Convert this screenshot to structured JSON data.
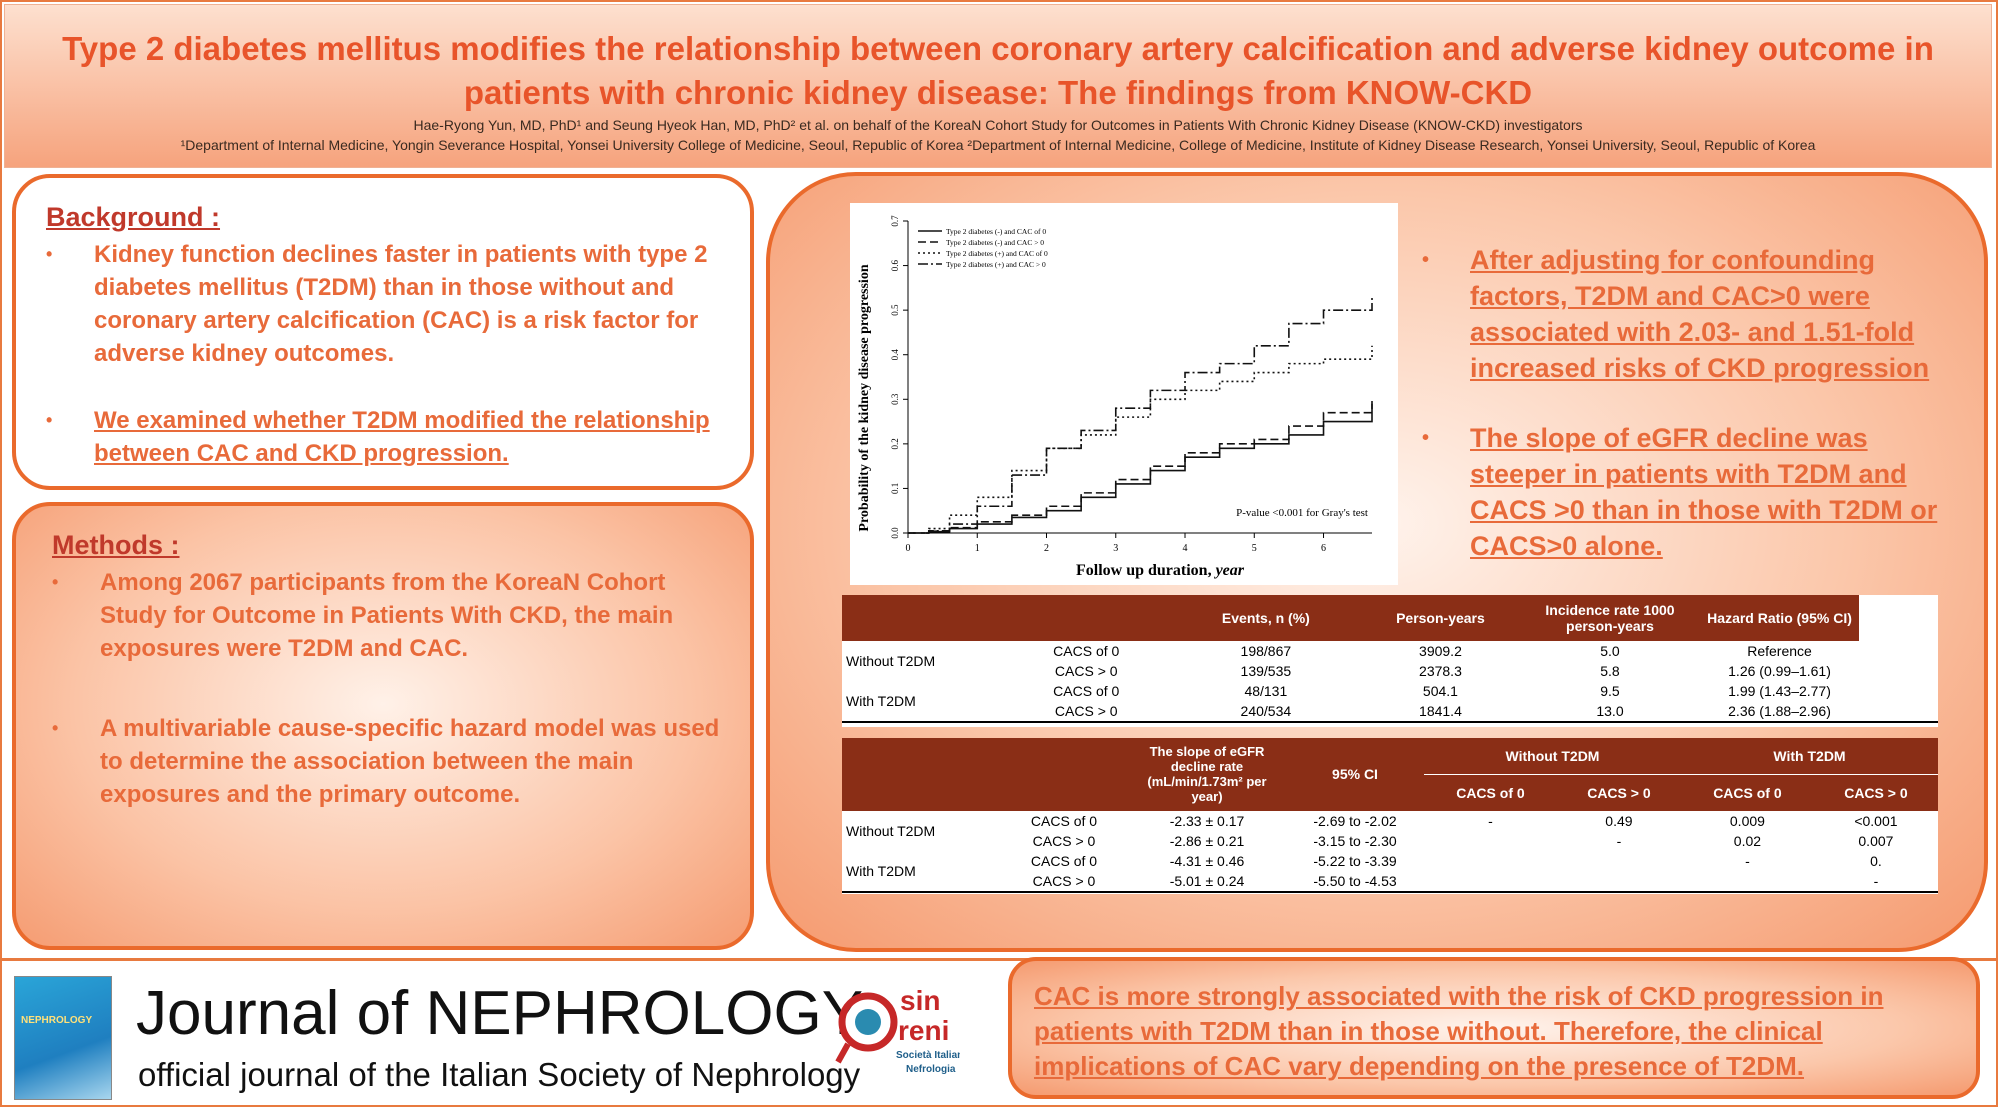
{
  "header": {
    "title": "Type 2 diabetes mellitus modifies the relationship between coronary artery calcification and adverse kidney outcome in patients with chronic kidney disease: The findings from KNOW-CKD",
    "authors": "Hae-Ryong Yun, MD, PhD¹ and Seung Hyeok Han, MD, PhD² et al. on behalf of the KoreaN Cohort Study for Outcomes in Patients With Chronic Kidney Disease (KNOW-CKD) investigators",
    "affiliations": "¹Department of Internal Medicine, Yongin Severance Hospital, Yonsei University College of Medicine, Seoul, Republic of Korea ²Department of Internal Medicine, College of Medicine, Institute of Kidney Disease Research, Yonsei University, Seoul, Republic of Korea"
  },
  "background": {
    "title": "Background :",
    "bullets": [
      "Kidney function declines faster in patients with type 2 diabetes mellitus (T2DM) than in those without and coronary artery calcification (CAC) is a risk factor for adverse kidney outcomes.",
      "We examined whether T2DM modified the relationship between CAC and CKD progression."
    ]
  },
  "methods": {
    "title": "Methods :",
    "bullets": [
      "Among 2067 participants from the KoreaN Cohort Study for Outcome in Patients With CKD, the main exposures were T2DM and CAC.",
      "A multivariable cause-specific hazard model was used to determine the association between the main exposures and the primary outcome."
    ]
  },
  "results": {
    "bullets": [
      "After adjusting for confounding factors, T2DM and CAC>0 were associated with 2.03- and 1.51-fold increased risks of CKD progression",
      "The slope of eGFR decline was steeper in patients with T2DM and CACS >0 than in those with T2DM or CACS>0 alone."
    ]
  },
  "chart_data": {
    "type": "line",
    "xlabel": "Follow up duration, year",
    "ylabel": "Probability of the kidney disease progression",
    "xlim": [
      0,
      6.7
    ],
    "ylim": [
      0,
      0.7
    ],
    "xticks": [
      "0",
      "1",
      "2",
      "3",
      "4",
      "5",
      "6"
    ],
    "yticks": [
      "0.0",
      "0.1",
      "0.2",
      "0.3",
      "0.4",
      "0.5",
      "0.6",
      "0.7"
    ],
    "annotation": "P-value <0.001 for Gray's test",
    "series": [
      {
        "name": "Type 2 diabetes (-) and CAC of 0",
        "dash": "",
        "x": [
          0,
          0.3,
          0.6,
          1,
          1.5,
          2,
          2.5,
          3,
          3.5,
          4,
          4.5,
          5,
          5.5,
          6,
          6.7
        ],
        "y": [
          0,
          0.003,
          0.01,
          0.02,
          0.035,
          0.05,
          0.08,
          0.11,
          0.14,
          0.17,
          0.19,
          0.2,
          0.22,
          0.25,
          0.29
        ]
      },
      {
        "name": "Type 2 diabetes (-) and CAC > 0",
        "dash": "8,4",
        "x": [
          0,
          0.3,
          0.6,
          1,
          1.5,
          2,
          2.5,
          3,
          3.5,
          4,
          4.5,
          5,
          5.5,
          6,
          6.7
        ],
        "y": [
          0,
          0.004,
          0.012,
          0.025,
          0.04,
          0.06,
          0.09,
          0.12,
          0.15,
          0.18,
          0.2,
          0.21,
          0.24,
          0.27,
          0.3
        ]
      },
      {
        "name": "Type 2 diabetes (+) and CAC of 0",
        "dash": "2,3",
        "x": [
          0,
          0.3,
          0.6,
          1,
          1.5,
          2,
          2.5,
          3,
          3.5,
          4,
          4.5,
          5,
          5.5,
          6,
          6.7
        ],
        "y": [
          0,
          0.01,
          0.04,
          0.08,
          0.14,
          0.19,
          0.22,
          0.26,
          0.3,
          0.32,
          0.34,
          0.36,
          0.38,
          0.39,
          0.42
        ]
      },
      {
        "name": "Type 2 diabetes (+) and CAC > 0",
        "dash": "10,3,2,3",
        "x": [
          0,
          0.3,
          0.6,
          1,
          1.5,
          2,
          2.5,
          3,
          3.5,
          4,
          4.5,
          5,
          5.5,
          6,
          6.7
        ],
        "y": [
          0,
          0.005,
          0.02,
          0.06,
          0.13,
          0.19,
          0.23,
          0.28,
          0.32,
          0.36,
          0.38,
          0.42,
          0.47,
          0.5,
          0.53
        ]
      }
    ]
  },
  "table1": {
    "headers": [
      "",
      "",
      "Events, n (%)",
      "Person-years",
      "Incidence rate 1000 person-years",
      "Hazard Ratio (95% CI)"
    ],
    "rows": [
      {
        "group": "Without T2DM",
        "cacs": "CACS of 0",
        "events": "198/867",
        "py": "3909.2",
        "rate": "5.0",
        "hr": "Reference"
      },
      {
        "group": "",
        "cacs": "CACS > 0",
        "events": "139/535",
        "py": "2378.3",
        "rate": "5.8",
        "hr": "1.26 (0.99–1.61)"
      },
      {
        "group": "With T2DM",
        "cacs": "CACS of 0",
        "events": "48/131",
        "py": "504.1",
        "rate": "9.5",
        "hr": "1.99 (1.43–2.77)"
      },
      {
        "group": "",
        "cacs": "CACS > 0",
        "events": "240/534",
        "py": "1841.4",
        "rate": "13.0",
        "hr": "2.36 (1.88–2.96)"
      }
    ]
  },
  "table2": {
    "h_slope": "The slope of eGFR decline rate (mL/min/1.73m² per year)",
    "h_ci": "95% CI",
    "h_without": "Without T2DM",
    "h_with": "With T2DM",
    "sub": [
      "CACS of 0",
      "CACS > 0",
      "CACS of 0",
      "CACS > 0"
    ],
    "rows": [
      {
        "group": "Without T2DM",
        "cacs": "CACS of 0",
        "slope": "-2.33 ± 0.17",
        "ci": "-2.69 to -2.02",
        "c1": "-",
        "c2": "0.49",
        "c3": "0.009",
        "c4": "<0.001"
      },
      {
        "group": "",
        "cacs": "CACS > 0",
        "slope": "-2.86 ± 0.21",
        "ci": "-3.15 to -2.30",
        "c1": "",
        "c2": "-",
        "c3": "0.02",
        "c4": "0.007"
      },
      {
        "group": "With T2DM",
        "cacs": "CACS of 0",
        "slope": "-4.31 ± 0.46",
        "ci": "-5.22 to -3.39",
        "c1": "",
        "c2": "",
        "c3": "-",
        "c4": "0."
      },
      {
        "group": "",
        "cacs": "CACS > 0",
        "slope": "-5.01 ± 0.24",
        "ci": "-5.50 to -4.53",
        "c1": "",
        "c2": "",
        "c3": "",
        "c4": "-"
      }
    ]
  },
  "footer": {
    "cover_title": "NEPHROLOGY",
    "journal": "Journal of NEPHROLOGY",
    "subtitle": "official journal of the Italian Society of Nephrology",
    "logo_text": "sin",
    "logo_text2": "reni",
    "logo_sub": "Società Italiana",
    "logo_sub2": "Nefrologia",
    "conclusion": "CAC is more strongly associated with the risk of CKD progression in patients with T2DM than in those without. Therefore, the clinical implications of CAC vary depending on the presence of T2DM."
  }
}
